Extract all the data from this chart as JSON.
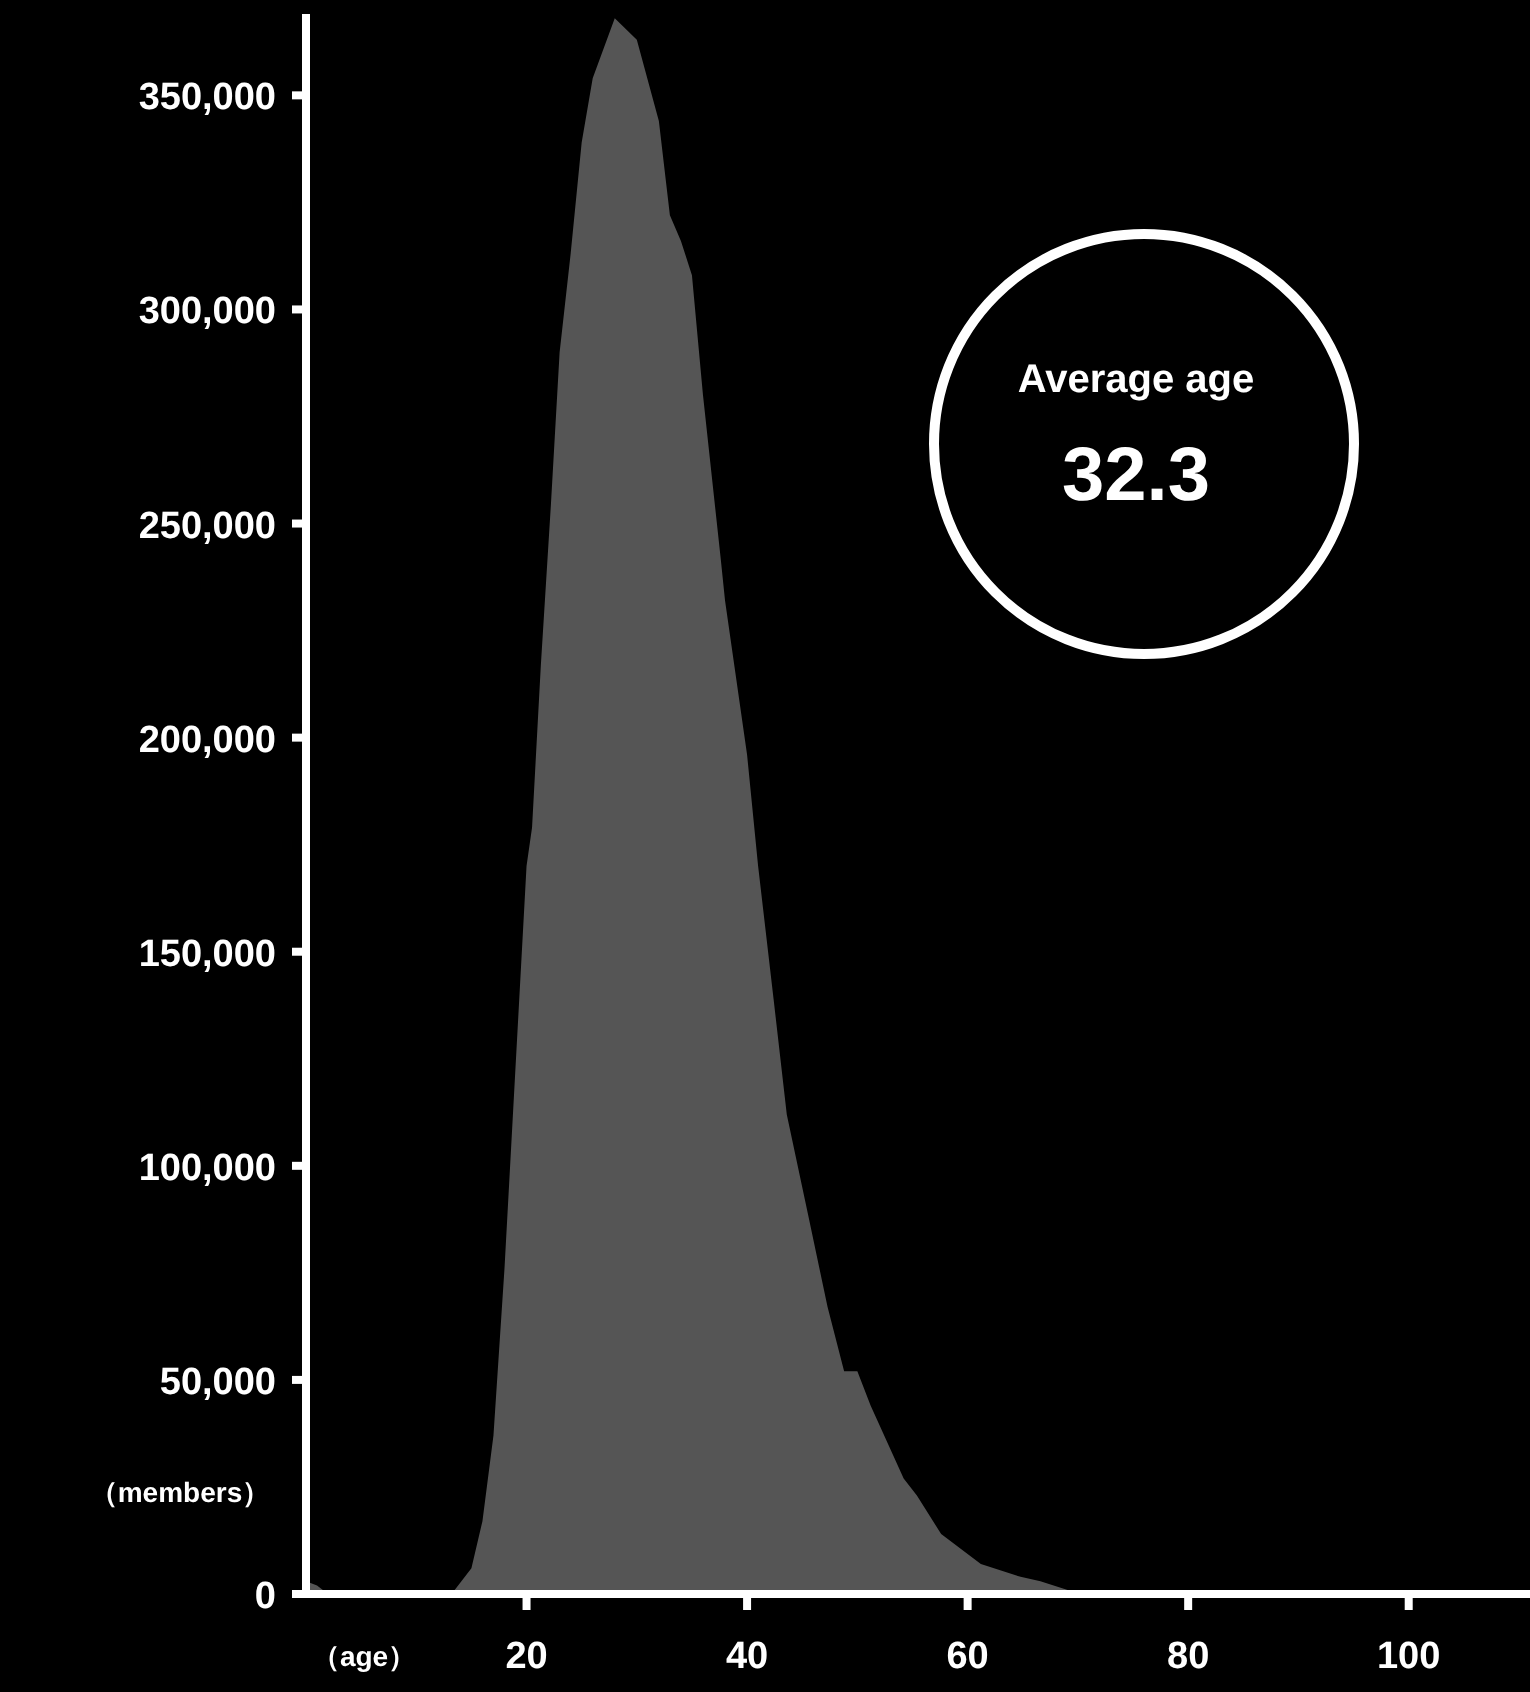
{
  "chart_data": {
    "type": "area",
    "xlabel": "（age）",
    "ylabel": "（members）",
    "x": [
      0,
      1,
      2,
      13,
      13.5,
      15,
      16,
      17,
      18,
      19,
      20,
      20.5,
      21.3,
      22.2,
      23,
      24,
      25,
      26,
      28,
      30,
      32,
      33,
      34,
      35,
      36,
      37.6,
      38,
      40,
      41,
      42.4,
      43.6,
      45.5,
      47.3,
      48.8,
      50,
      51.2,
      54.2,
      55.4,
      57.6,
      61.2,
      64.8,
      66.6,
      69,
      70,
      110
    ],
    "series": [
      {
        "color": "#555555",
        "values": [
          3000,
          2000,
          0,
          0,
          1000,
          6000,
          17000,
          37000,
          76000,
          123000,
          170000,
          179000,
          217000,
          254000,
          290000,
          313000,
          339000,
          354000,
          368000,
          363000,
          344000,
          322000,
          316000,
          308000,
          280000,
          242000,
          232000,
          196000,
          170000,
          139000,
          112000,
          89000,
          67000,
          52000,
          52000,
          44000,
          27000,
          23000,
          14000,
          7000,
          4000,
          3000,
          1000,
          0,
          0
        ]
      }
    ],
    "xlim": [
      0,
      111
    ],
    "ylim": [
      0,
      369000
    ],
    "xticks": [
      20,
      40,
      60,
      80,
      100
    ],
    "yticks": [
      0,
      {
        "value": 50000,
        "label": "50,000"
      },
      {
        "value": 100000,
        "label": "100,000"
      },
      {
        "value": 150000,
        "label": "150,000"
      },
      {
        "value": 200000,
        "label": "200,000"
      },
      {
        "value": 250000,
        "label": "250,000"
      },
      {
        "value": 300000,
        "label": "300,000"
      },
      {
        "value": 350000,
        "label": "350,000"
      }
    ],
    "annotations": [
      "Average age",
      "32.3"
    ],
    "grid": false
  }
}
